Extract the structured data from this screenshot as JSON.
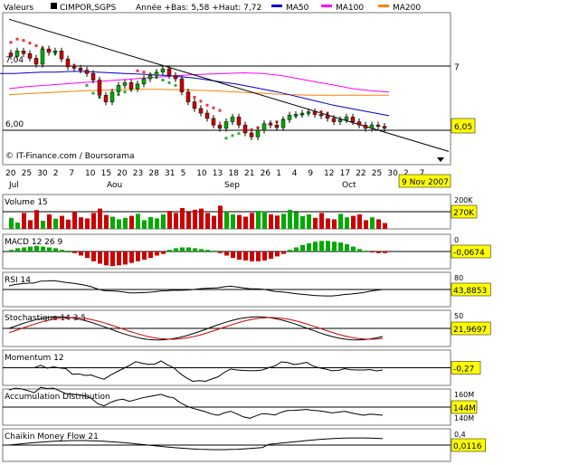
{
  "header": {
    "values_label": "Valeurs",
    "symbol": "CIMPOR,SGPS",
    "year_stats": "Année +Bas: 5,58 +Haut: 7,72",
    "legend": [
      {
        "name": "MA50",
        "color": "#0000cc"
      },
      {
        "name": "MA100",
        "color": "#ff00ff"
      },
      {
        "name": "MA200",
        "color": "#ff8000"
      }
    ]
  },
  "main_panel": {
    "y_labels": [
      "7,04",
      "7",
      "6,00"
    ],
    "last_price_badge": "6,05",
    "credit": "© IT-Finance.com / Boursorama",
    "x_ticks": [
      "20",
      "25",
      "30",
      "2",
      "7",
      "10",
      "15",
      "20",
      "23",
      "28",
      "31",
      "5",
      "10",
      "13",
      "18",
      "21",
      "26",
      "1",
      "4",
      "9",
      "12",
      "17",
      "22",
      "25",
      "30",
      "2",
      "7"
    ],
    "month_labels": [
      "Jul",
      "Aou",
      "Sep",
      "Oct"
    ],
    "date_badge": "9 Nov 2007",
    "price_range": [
      5.58,
      7.72
    ]
  },
  "panels": [
    {
      "id": "volume",
      "title": "Volume 15",
      "labels": [
        "200K"
      ],
      "badge": "270K"
    },
    {
      "id": "macd",
      "title": "MACD 12 26 9",
      "labels": [
        "0"
      ],
      "badge": "-0,0674"
    },
    {
      "id": "rsi",
      "title": "RSI 14",
      "labels": [
        "80"
      ],
      "badge": "43,8853"
    },
    {
      "id": "stoch",
      "title": "Stochastique 14 3 5",
      "labels": [
        "50"
      ],
      "badge": "21,9697"
    },
    {
      "id": "momentum",
      "title": "Momentum 12",
      "labels": [],
      "badge": "-0,27"
    },
    {
      "id": "accdist",
      "title": "Accumulation Distribution",
      "labels": [
        "160M",
        "140M"
      ],
      "badge": "144M"
    },
    {
      "id": "chaikin",
      "title": "Chaikin Money Flow 21",
      "labels": [
        "0,4"
      ],
      "badge": "0,0116"
    }
  ],
  "colors": {
    "up": "#00aa00",
    "down": "#cc0000",
    "sar_up": "#33aa33",
    "sar_down": "#ee3333",
    "badge_bg": "#ffff00",
    "trend": "#000000",
    "signal": "#cc0000"
  },
  "chart_data": {
    "type": "candlestick",
    "x_date_range": [
      "2007-07-20",
      "2007-11-09"
    ],
    "close": [
      7.14,
      7.22,
      7.18,
      7.11,
      7.02,
      7.25,
      7.2,
      7.22,
      7.1,
      6.98,
      6.96,
      6.93,
      6.88,
      6.78,
      6.55,
      6.45,
      6.6,
      6.7,
      6.74,
      6.65,
      6.72,
      6.8,
      6.85,
      6.9,
      6.95,
      6.85,
      6.8,
      6.6,
      6.45,
      6.35,
      6.28,
      6.2,
      6.1,
      6.05,
      6.15,
      6.22,
      6.1,
      5.98,
      5.92,
      6.02,
      6.12,
      6.1,
      6.06,
      6.18,
      6.25,
      6.26,
      6.28,
      6.3,
      6.26,
      6.24,
      6.2,
      6.15,
      6.18,
      6.22,
      6.15,
      6.1,
      6.05,
      6.1,
      6.08,
      6.05
    ],
    "sar": [
      7.35,
      7.4,
      7.38,
      7.34,
      7.3,
      7.26,
      7.22,
      7.18,
      7.12,
      7.06,
      7.0,
      6.94,
      6.7,
      6.58,
      6.52,
      6.5,
      6.52,
      6.56,
      6.6,
      6.64,
      6.92,
      6.9,
      6.86,
      6.82,
      6.78,
      6.74,
      6.7,
      6.64,
      6.58,
      6.52,
      6.46,
      6.4,
      6.36,
      6.32,
      5.9,
      5.94,
      5.97,
      6.0,
      6.03,
      6.06,
      6.09,
      6.12,
      6.15,
      6.18,
      6.21,
      6.24,
      6.26,
      6.28,
      6.3,
      6.3,
      6.28
    ],
    "ma50": [
      6.88,
      6.88,
      6.89,
      6.9,
      6.9,
      6.91,
      6.91,
      6.9,
      6.89,
      6.88,
      6.87,
      6.86,
      6.85,
      6.83,
      6.81,
      6.78,
      6.75,
      6.72,
      6.68,
      6.64,
      6.6,
      6.55,
      6.5,
      6.45,
      6.4,
      6.36,
      6.32,
      6.28,
      6.24
    ],
    "ma100": [
      6.65,
      6.68,
      6.7,
      6.72,
      6.74,
      6.76,
      6.78,
      6.8,
      6.82,
      6.84,
      6.86,
      6.87,
      6.88,
      6.89,
      6.88,
      6.85,
      6.8,
      6.75,
      6.7,
      6.65,
      6.62,
      6.6
    ],
    "ma200": [
      6.56,
      6.58,
      6.6,
      6.62,
      6.63,
      6.64,
      6.64,
      6.63,
      6.62,
      6.6,
      6.58,
      6.56,
      6.55,
      6.55,
      6.55,
      6.55
    ],
    "trendline": [
      [
        0,
        7.7
      ],
      [
        74,
        5.7
      ]
    ],
    "volume": [
      0.38,
      0.22,
      0.55,
      0.3,
      0.65,
      0.28,
      0.5,
      0.35,
      0.45,
      0.32,
      0.6,
      0.4,
      0.36,
      0.55,
      0.7,
      0.48,
      0.42,
      0.33,
      0.38,
      0.45,
      0.52,
      0.3,
      0.41,
      0.36,
      0.5,
      0.62,
      0.55,
      0.72,
      0.58,
      0.66,
      0.7,
      0.55,
      0.45,
      0.8,
      0.6,
      0.5,
      0.48,
      0.42,
      0.55,
      0.62,
      0.6,
      0.5,
      0.46,
      0.52,
      0.66,
      0.58,
      0.44,
      0.5,
      0.38,
      0.55,
      0.36,
      0.33,
      0.52,
      0.4,
      0.45,
      0.5,
      0.3,
      0.4,
      0.33,
      0.2
    ],
    "macd": [
      0.02,
      0.04,
      0.05,
      0.06,
      0.07,
      0.06,
      0.05,
      0.04,
      0.02,
      0,
      -0.02,
      -0.05,
      -0.08,
      -0.12,
      -0.15,
      -0.17,
      -0.18,
      -0.17,
      -0.16,
      -0.14,
      -0.12,
      -0.1,
      -0.08,
      -0.05,
      -0.03,
      0.02,
      0.04,
      0.05,
      0.05,
      0.04,
      0.03,
      0.02,
      0.01,
      -0.02,
      -0.05,
      -0.08,
      -0.1,
      -0.11,
      -0.12,
      -0.12,
      -0.11,
      -0.09,
      -0.06,
      -0.03,
      0.02,
      0.05,
      0.08,
      0.1,
      0.12,
      0.13,
      0.13,
      0.12,
      0.11,
      0.09,
      0.06,
      0.03,
      0.01,
      -0.01,
      -0.02,
      -0.02
    ]
  }
}
